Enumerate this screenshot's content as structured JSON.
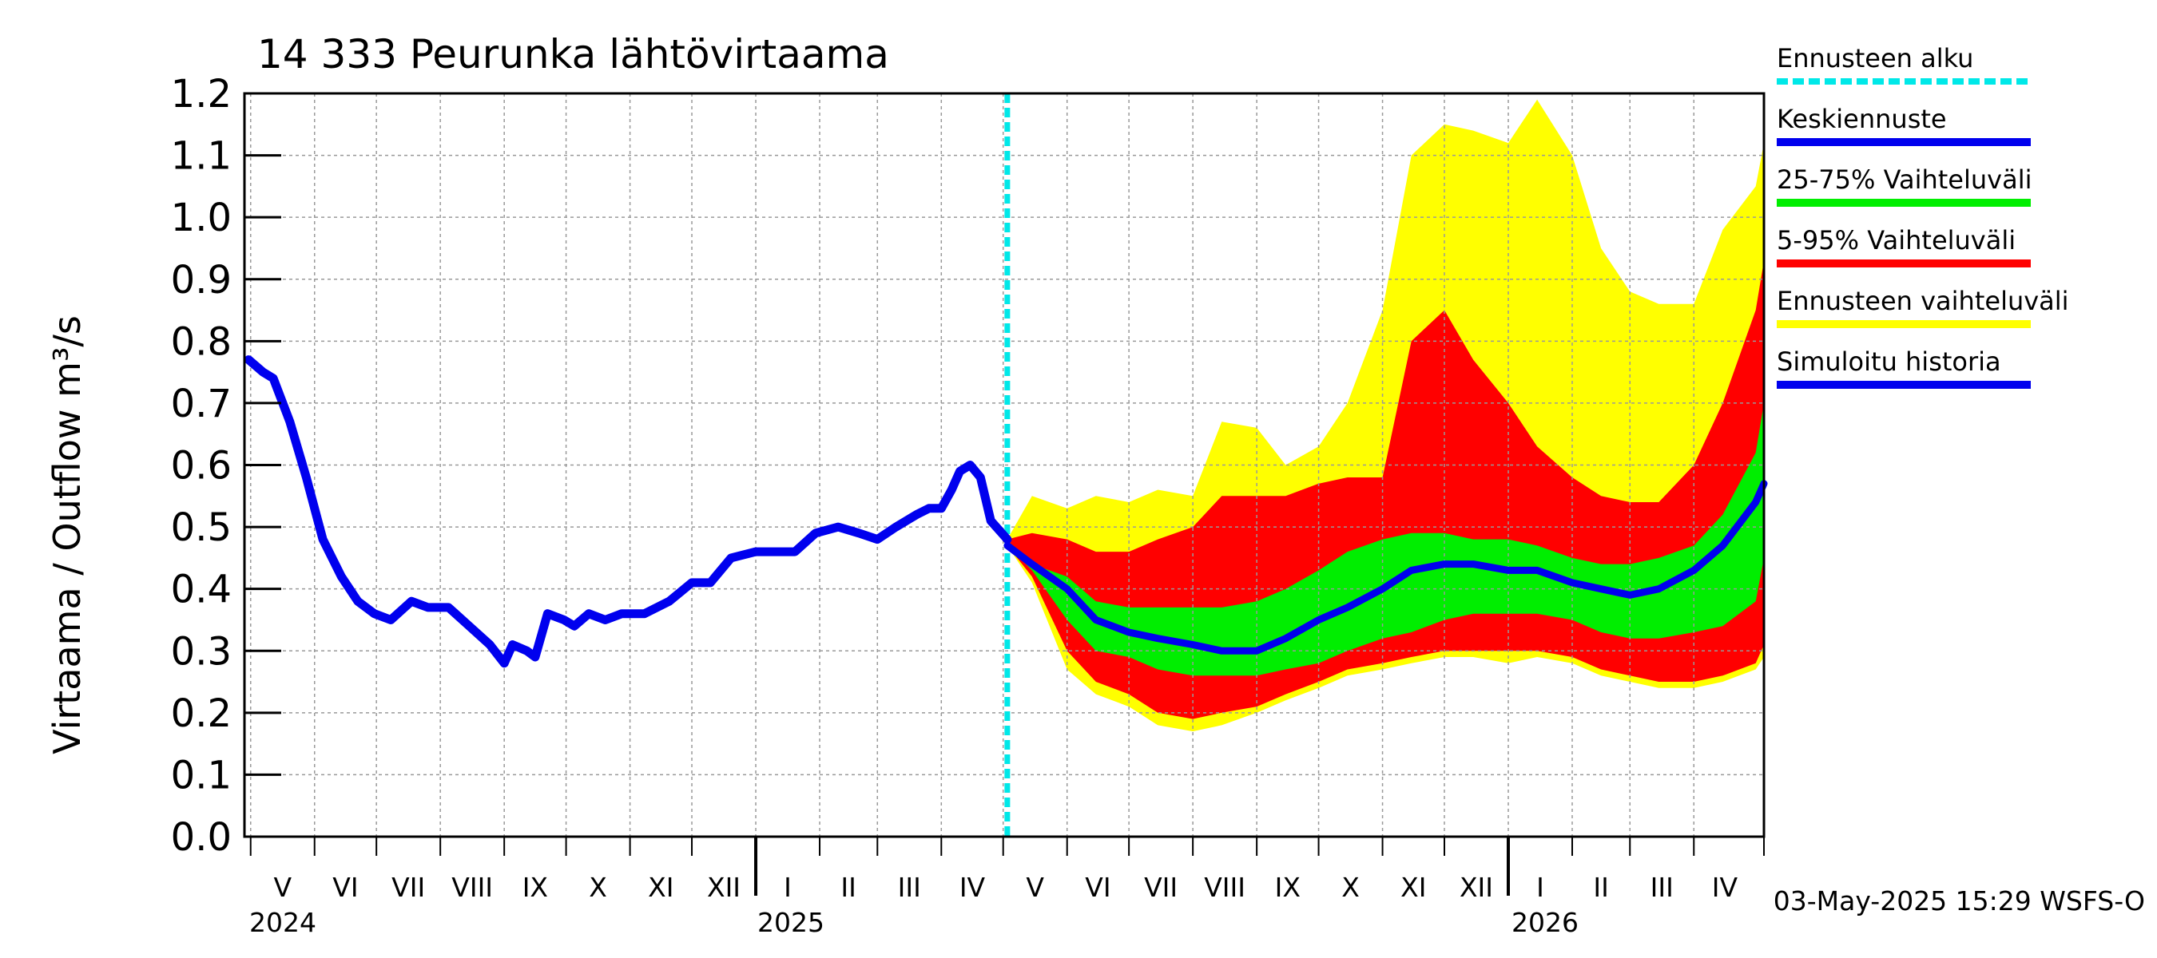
{
  "chart_data": {
    "type": "area",
    "title": "14 333 Peurunka lähtövirtaama",
    "ylabel": "Virtaama / Outflow    m³/s",
    "ylim": [
      0,
      1.2
    ],
    "yticks": [
      "0.0",
      "0.1",
      "0.2",
      "0.3",
      "0.4",
      "0.5",
      "0.6",
      "0.7",
      "0.8",
      "0.9",
      "1.0",
      "1.1",
      "1.2"
    ],
    "months": [
      "V",
      "VI",
      "VII",
      "VIII",
      "IX",
      "X",
      "XI",
      "XII",
      "I",
      "II",
      "III",
      "IV",
      "V",
      "VI",
      "VII",
      "VIII",
      "IX",
      "X",
      "XI",
      "XII",
      "I",
      "II",
      "III",
      "IV"
    ],
    "years": [
      "2024",
      "2025",
      "2026"
    ],
    "forecast_start": "2025-05-03",
    "footer": "03-May-2025 15:29 WSFS-O",
    "colors": {
      "history": "#0000ee",
      "median": "#0000ee",
      "band_25_75": "#00ee00",
      "band_5_95": "#ff0000",
      "band_full": "#ffff00",
      "forecast_start": "#00e8e8"
    },
    "legend": [
      {
        "label": "Ennusteen alku",
        "color": "#00e8e8",
        "style": "dashed"
      },
      {
        "label": "Keskiennuste",
        "color": "#0000ee",
        "style": "solid"
      },
      {
        "label": "25-75% Vaihteluväli",
        "color": "#00ee00",
        "style": "solid"
      },
      {
        "label": "5-95% Vaihteluväli",
        "color": "#ff0000",
        "style": "solid"
      },
      {
        "label": "Ennusteen vaihteluväli",
        "color": "#ffff00",
        "style": "solid"
      },
      {
        "label": "Simuloitu historia",
        "color": "#0000ee",
        "style": "solid"
      }
    ],
    "history": {
      "x": [
        "2024-04-30",
        "2024-05-07",
        "2024-05-12",
        "2024-05-20",
        "2024-05-28",
        "2024-06-05",
        "2024-06-14",
        "2024-06-22",
        "2024-06-30",
        "2024-07-08",
        "2024-07-18",
        "2024-07-26",
        "2024-08-05",
        "2024-08-15",
        "2024-08-25",
        "2024-09-01",
        "2024-09-05",
        "2024-09-12",
        "2024-09-16",
        "2024-09-22",
        "2024-09-30",
        "2024-10-05",
        "2024-10-12",
        "2024-10-20",
        "2024-10-28",
        "2024-11-08",
        "2024-11-20",
        "2024-12-01",
        "2024-12-10",
        "2024-12-20",
        "2025-01-01",
        "2025-01-10",
        "2025-01-20",
        "2025-01-30",
        "2025-02-10",
        "2025-02-20",
        "2025-03-01",
        "2025-03-10",
        "2025-03-20",
        "2025-03-26",
        "2025-04-01",
        "2025-04-06",
        "2025-04-10",
        "2025-04-15",
        "2025-04-20",
        "2025-04-25",
        "2025-05-03"
      ],
      "y": [
        0.77,
        0.75,
        0.74,
        0.67,
        0.58,
        0.48,
        0.42,
        0.38,
        0.36,
        0.35,
        0.38,
        0.37,
        0.37,
        0.34,
        0.31,
        0.28,
        0.31,
        0.3,
        0.29,
        0.36,
        0.35,
        0.34,
        0.36,
        0.35,
        0.36,
        0.36,
        0.38,
        0.41,
        0.41,
        0.45,
        0.46,
        0.46,
        0.46,
        0.49,
        0.5,
        0.49,
        0.48,
        0.5,
        0.52,
        0.53,
        0.53,
        0.56,
        0.59,
        0.6,
        0.58,
        0.51,
        0.48
      ]
    },
    "forecast": {
      "x": [
        "2025-05-03",
        "2025-05-15",
        "2025-06-01",
        "2025-06-15",
        "2025-07-01",
        "2025-07-15",
        "2025-08-01",
        "2025-08-15",
        "2025-09-01",
        "2025-09-15",
        "2025-10-01",
        "2025-10-15",
        "2025-11-01",
        "2025-11-15",
        "2025-12-01",
        "2025-12-15",
        "2026-01-01",
        "2026-01-15",
        "2026-02-01",
        "2026-02-15",
        "2026-03-01",
        "2026-03-15",
        "2026-04-01",
        "2026-04-15",
        "2026-05-01",
        "2026-05-05"
      ],
      "max": [
        0.48,
        0.55,
        0.53,
        0.55,
        0.54,
        0.56,
        0.55,
        0.67,
        0.66,
        0.6,
        0.63,
        0.7,
        0.85,
        1.1,
        1.15,
        1.14,
        1.12,
        1.19,
        1.1,
        0.95,
        0.88,
        0.86,
        0.86,
        0.98,
        1.05,
        1.12
      ],
      "p95": [
        0.48,
        0.49,
        0.48,
        0.46,
        0.46,
        0.48,
        0.5,
        0.55,
        0.55,
        0.55,
        0.57,
        0.58,
        0.58,
        0.8,
        0.85,
        0.77,
        0.7,
        0.63,
        0.58,
        0.55,
        0.54,
        0.54,
        0.6,
        0.7,
        0.85,
        0.93
      ],
      "p75": [
        0.47,
        0.44,
        0.42,
        0.38,
        0.37,
        0.37,
        0.37,
        0.37,
        0.38,
        0.4,
        0.43,
        0.46,
        0.48,
        0.49,
        0.49,
        0.48,
        0.48,
        0.47,
        0.45,
        0.44,
        0.44,
        0.45,
        0.47,
        0.52,
        0.62,
        0.7
      ],
      "median": [
        0.47,
        0.44,
        0.4,
        0.35,
        0.33,
        0.32,
        0.31,
        0.3,
        0.3,
        0.32,
        0.35,
        0.37,
        0.4,
        0.43,
        0.44,
        0.44,
        0.43,
        0.43,
        0.41,
        0.4,
        0.39,
        0.4,
        0.43,
        0.47,
        0.54,
        0.57
      ],
      "p25": [
        0.47,
        0.43,
        0.35,
        0.3,
        0.29,
        0.27,
        0.26,
        0.26,
        0.26,
        0.27,
        0.28,
        0.3,
        0.32,
        0.33,
        0.35,
        0.36,
        0.36,
        0.36,
        0.35,
        0.33,
        0.32,
        0.32,
        0.33,
        0.34,
        0.38,
        0.45
      ],
      "p5": [
        0.47,
        0.42,
        0.3,
        0.25,
        0.23,
        0.2,
        0.19,
        0.2,
        0.21,
        0.23,
        0.25,
        0.27,
        0.28,
        0.29,
        0.3,
        0.3,
        0.3,
        0.3,
        0.29,
        0.27,
        0.26,
        0.25,
        0.25,
        0.26,
        0.28,
        0.31
      ],
      "min": [
        0.47,
        0.41,
        0.27,
        0.23,
        0.21,
        0.18,
        0.17,
        0.18,
        0.2,
        0.22,
        0.24,
        0.26,
        0.27,
        0.28,
        0.29,
        0.29,
        0.28,
        0.29,
        0.28,
        0.26,
        0.25,
        0.24,
        0.24,
        0.25,
        0.27,
        0.29
      ]
    }
  }
}
